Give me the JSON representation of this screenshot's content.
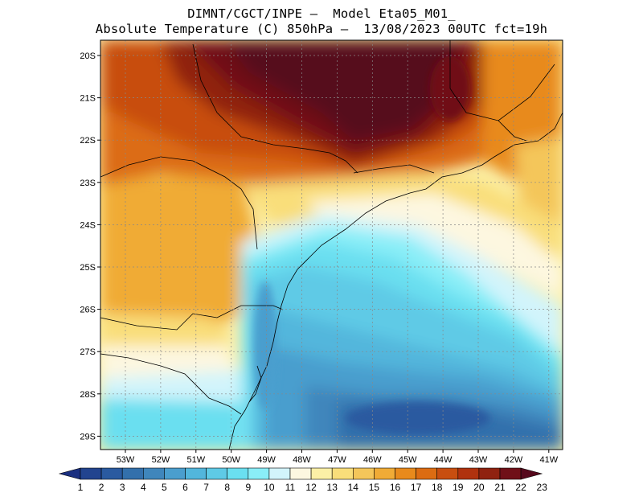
{
  "header": {
    "title_line1": "DIMNT/CGCT/INPE —  Model Eta05_M01_",
    "title_line2": "Absolute Temperature (C) 850hPa —  13/08/2023 00UTC fct=19h"
  },
  "map": {
    "lat_labels": [
      "20S",
      "21S",
      "22S",
      "23S",
      "24S",
      "25S",
      "26S",
      "27S",
      "28S",
      "29S"
    ],
    "lon_labels": [
      "53W",
      "52W",
      "51W",
      "50W",
      "49W",
      "48W",
      "47W",
      "46W",
      "45W",
      "44W",
      "43W",
      "42W",
      "41W"
    ],
    "gridlines": true
  },
  "colorbar": {
    "labels": [
      "1",
      "2",
      "3",
      "4",
      "5",
      "6",
      "7",
      "8",
      "9",
      "10",
      "11",
      "12",
      "13",
      "14",
      "15",
      "16",
      "17",
      "18",
      "19",
      "20",
      "21",
      "22",
      "23"
    ],
    "colors": [
      "#1a2f80",
      "#22448f",
      "#2a5aa0",
      "#3370ac",
      "#3f86bc",
      "#4a9ece",
      "#52b6dc",
      "#5ecae6",
      "#6adff0",
      "#8aeef8",
      "#d2f4fb",
      "#fdf7e0",
      "#fcf0a6",
      "#f9de7a",
      "#f4c65a",
      "#f0ab36",
      "#e88a1c",
      "#dc6c12",
      "#c84e10",
      "#b0320e",
      "#902210",
      "#701018",
      "#56081c"
    ]
  }
}
